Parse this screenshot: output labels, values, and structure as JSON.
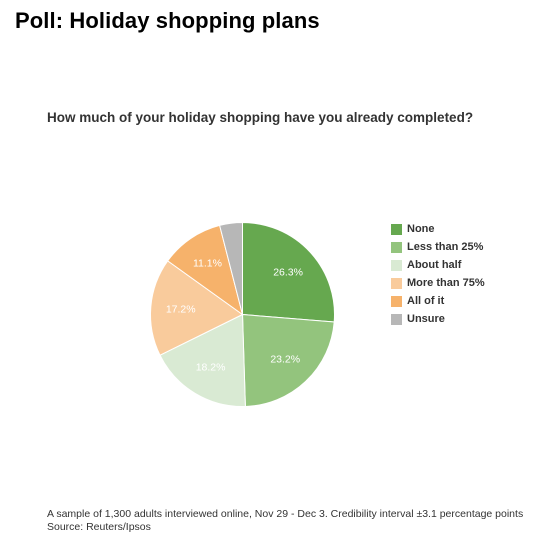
{
  "page": {
    "headline": "Poll: Holiday shopping plans"
  },
  "chart_data": {
    "type": "pie",
    "title": "How much of your holiday shopping have you already completed?",
    "categories": [
      "None",
      "Less than 25%",
      "About half",
      "More than 75%",
      "All of it",
      "Unsure"
    ],
    "values": [
      26.3,
      23.2,
      18.2,
      17.2,
      11.1,
      4.0
    ],
    "value_labels": [
      "26.3%",
      "23.2%",
      "18.2%",
      "17.2%",
      "11.1%",
      ""
    ],
    "colors": [
      "#66a84f",
      "#93c47d",
      "#d9ead3",
      "#f9cb9c",
      "#f6b26b",
      "#b7b7b7"
    ],
    "legend_position": "right",
    "start_angle_deg": 0,
    "direction": "clockwise"
  },
  "footnote": {
    "sample": "A sample of 1,300 adults interviewed online, Nov 29 - Dec 3. Credibility interval ±3.1 percentage points",
    "source": "Source: Reuters/Ipsos"
  }
}
